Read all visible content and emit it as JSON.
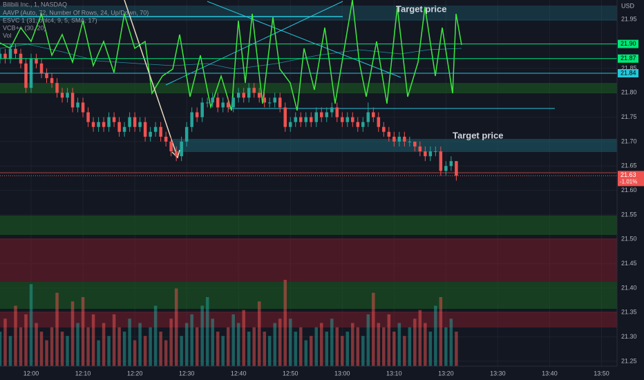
{
  "chart_data": {
    "type": "candlestick",
    "title": "Bilibili Inc., 1, NASDAQ",
    "indicators": [
      "AAVP (Auto, 72, Number Of Rows, 24, Up/Down, 70)",
      "ESVC 1 (31, ohlc4, 9, 5, SMA, 17)",
      "VCB++ (30, 20)",
      "Vol"
    ],
    "currency": "USD",
    "annotations": [
      "Target price",
      "Target price"
    ],
    "x": [
      "11:54",
      "11:55",
      "11:56",
      "11:57",
      "11:58",
      "11:59",
      "12:00",
      "12:01",
      "12:02",
      "12:03",
      "12:04",
      "12:05",
      "12:06",
      "12:07",
      "12:08",
      "12:09",
      "12:10",
      "12:11",
      "12:12",
      "12:13",
      "12:14",
      "12:15",
      "12:16",
      "12:17",
      "12:18",
      "12:19",
      "12:20",
      "12:21",
      "12:22",
      "12:23",
      "12:24",
      "12:25",
      "12:26",
      "12:27",
      "12:28",
      "12:29",
      "12:30",
      "12:31",
      "12:32",
      "12:33",
      "12:34",
      "12:35",
      "12:36",
      "12:37",
      "12:38",
      "12:39",
      "12:40",
      "12:41",
      "12:42",
      "12:43",
      "12:44",
      "12:45",
      "12:46",
      "12:47",
      "12:48",
      "12:49",
      "12:50",
      "12:51",
      "12:52",
      "12:53",
      "12:54",
      "12:55",
      "12:56",
      "12:57",
      "12:58",
      "12:59",
      "13:00",
      "13:01",
      "13:02",
      "13:03",
      "13:04",
      "13:05",
      "13:06",
      "13:07",
      "13:08",
      "13:09",
      "13:10",
      "13:11",
      "13:12",
      "13:13",
      "13:14",
      "13:15",
      "13:16",
      "13:17",
      "13:18",
      "13:19",
      "13:20",
      "13:21",
      "13:22"
    ],
    "open": [
      21.87,
      21.88,
      21.87,
      21.89,
      21.88,
      21.86,
      21.81,
      21.87,
      21.86,
      21.84,
      21.83,
      21.82,
      21.8,
      21.79,
      21.8,
      21.77,
      21.78,
      21.76,
      21.74,
      21.73,
      21.74,
      21.73,
      21.75,
      21.74,
      21.72,
      21.73,
      21.75,
      21.73,
      21.74,
      21.71,
      21.72,
      21.73,
      21.71,
      21.7,
      21.68,
      21.67,
      21.7,
      21.73,
      21.76,
      21.75,
      21.78,
      21.78,
      21.79,
      21.77,
      21.78,
      21.77,
      21.79,
      21.8,
      21.79,
      21.81,
      21.8,
      21.79,
      21.78,
      21.78,
      21.79,
      21.77,
      21.73,
      21.74,
      21.75,
      21.74,
      21.75,
      21.74,
      21.76,
      21.75,
      21.76,
      21.77,
      21.75,
      21.74,
      21.75,
      21.74,
      21.73,
      21.74,
      21.76,
      21.75,
      21.73,
      21.72,
      21.71,
      21.7,
      21.71,
      21.7,
      21.7,
      21.69,
      21.68,
      21.67,
      21.68,
      21.68,
      21.64,
      21.65,
      21.66
    ],
    "high": [
      21.89,
      21.89,
      21.9,
      21.9,
      21.89,
      21.87,
      21.88,
      21.88,
      21.87,
      21.85,
      21.84,
      21.83,
      21.81,
      21.81,
      21.81,
      21.79,
      21.79,
      21.77,
      21.75,
      21.75,
      21.75,
      21.76,
      21.76,
      21.75,
      21.74,
      21.76,
      21.76,
      21.75,
      21.75,
      21.73,
      21.74,
      21.74,
      21.72,
      21.71,
      21.69,
      21.71,
      21.74,
      21.77,
      21.77,
      21.79,
      21.79,
      21.8,
      21.8,
      21.79,
      21.79,
      21.8,
      21.81,
      21.81,
      21.82,
      21.82,
      21.81,
      21.8,
      21.79,
      21.8,
      21.8,
      21.78,
      21.75,
      21.76,
      21.76,
      21.76,
      21.76,
      21.77,
      21.77,
      21.77,
      21.78,
      21.78,
      21.76,
      21.76,
      21.76,
      21.75,
      21.75,
      21.78,
      21.77,
      21.76,
      21.74,
      21.73,
      21.72,
      21.72,
      21.72,
      21.71,
      21.7,
      21.7,
      21.69,
      21.69,
      21.69,
      21.69,
      21.66,
      21.67,
      21.66
    ],
    "low": [
      21.86,
      21.86,
      21.86,
      21.87,
      21.85,
      21.8,
      21.8,
      21.85,
      21.83,
      21.82,
      21.81,
      21.79,
      21.78,
      21.78,
      21.76,
      21.76,
      21.75,
      21.73,
      21.72,
      21.72,
      21.72,
      21.72,
      21.73,
      21.71,
      21.71,
      21.72,
      21.72,
      21.72,
      21.7,
      21.7,
      21.71,
      21.7,
      21.69,
      21.67,
      21.66,
      21.66,
      21.69,
      21.72,
      21.74,
      21.74,
      21.77,
      21.77,
      21.76,
      21.76,
      21.76,
      21.76,
      21.78,
      21.78,
      21.78,
      21.79,
      21.78,
      21.77,
      21.77,
      21.77,
      21.76,
      21.72,
      21.72,
      21.73,
      21.73,
      21.73,
      21.73,
      21.73,
      21.74,
      21.74,
      21.75,
      21.74,
      21.73,
      21.73,
      21.73,
      21.72,
      21.72,
      21.73,
      21.74,
      21.72,
      21.71,
      21.7,
      21.69,
      21.69,
      21.69,
      21.69,
      21.68,
      21.67,
      21.66,
      21.66,
      21.67,
      21.63,
      21.63,
      21.64,
      21.62
    ],
    "close": [
      21.88,
      21.87,
      21.89,
      21.88,
      21.86,
      21.81,
      21.87,
      21.86,
      21.84,
      21.83,
      21.82,
      21.8,
      21.79,
      21.8,
      21.77,
      21.78,
      21.76,
      21.74,
      21.73,
      21.74,
      21.73,
      21.75,
      21.74,
      21.72,
      21.73,
      21.75,
      21.73,
      21.74,
      21.71,
      21.72,
      21.73,
      21.71,
      21.7,
      21.68,
      21.67,
      21.7,
      21.73,
      21.76,
      21.75,
      21.78,
      21.78,
      21.79,
      21.77,
      21.78,
      21.77,
      21.79,
      21.8,
      21.79,
      21.81,
      21.8,
      21.79,
      21.78,
      21.78,
      21.79,
      21.77,
      21.73,
      21.74,
      21.75,
      21.74,
      21.75,
      21.74,
      21.76,
      21.75,
      21.76,
      21.77,
      21.75,
      21.74,
      21.75,
      21.74,
      21.73,
      21.74,
      21.76,
      21.75,
      21.73,
      21.72,
      21.71,
      21.7,
      21.71,
      21.7,
      21.7,
      21.69,
      21.68,
      21.67,
      21.68,
      21.68,
      21.64,
      21.65,
      21.66,
      21.63
    ],
    "volume": [
      40,
      55,
      35,
      70,
      45,
      60,
      95,
      50,
      40,
      30,
      45,
      85,
      40,
      35,
      75,
      50,
      80,
      45,
      60,
      30,
      50,
      35,
      60,
      45,
      40,
      55,
      30,
      50,
      35,
      45,
      70,
      40,
      30,
      55,
      90,
      35,
      50,
      60,
      45,
      70,
      80,
      55,
      40,
      35,
      45,
      60,
      50,
      65,
      40,
      45,
      75,
      40,
      35,
      50,
      55,
      100,
      55,
      40,
      45,
      30,
      35,
      45,
      50,
      40,
      55,
      45,
      35,
      40,
      50,
      45,
      35,
      60,
      85,
      50,
      45,
      60,
      40,
      50,
      35,
      45,
      55,
      65,
      50,
      40,
      70,
      80,
      45,
      55,
      40
    ],
    "up_color": "#26a69a",
    "down_color": "#ef5350",
    "xlim": [
      "11:54",
      "13:53"
    ],
    "xticks": [
      "12:00",
      "12:10",
      "12:20",
      "12:30",
      "12:40",
      "12:50",
      "13:00",
      "13:10",
      "13:20",
      "13:30",
      "13:40",
      "13:50"
    ],
    "ylim": [
      21.24,
      21.99
    ],
    "yticks": [
      21.25,
      {
        "value": 21.3,
        "label": "21.30"
      },
      21.35,
      {
        "value": 21.4,
        "label": "21.40"
      },
      21.45,
      {
        "value": 21.5,
        "label": "21.50"
      },
      21.55,
      {
        "value": 21.6,
        "label": "21.60"
      },
      21.65,
      {
        "value": 21.7,
        "label": "21.70"
      },
      21.75,
      {
        "value": 21.8,
        "label": "21.80"
      },
      21.85,
      {
        "value": 21.9,
        "label": "21.90"
      },
      21.95
    ],
    "levels": [
      {
        "value": 21.9,
        "label": "21.90",
        "color": "#00e676"
      },
      {
        "value": 21.87,
        "label": "21.87",
        "color": "#00e676"
      },
      {
        "value": 21.84,
        "label": "21.84",
        "color": "#26c6da"
      }
    ],
    "last_price": 21.63,
    "last_change": "-1.01%",
    "grid": true
  }
}
